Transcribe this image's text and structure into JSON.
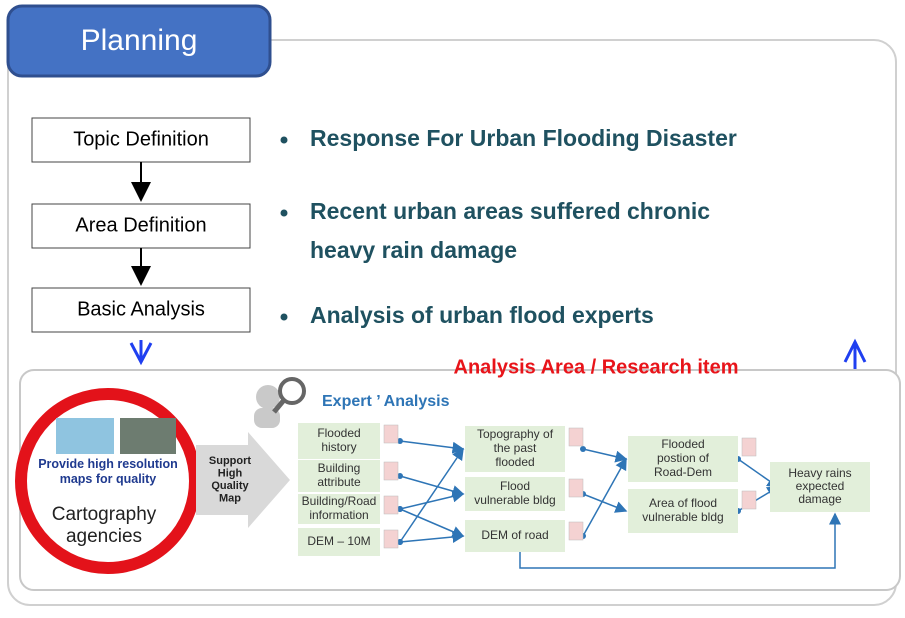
{
  "header": {
    "title": "Planning"
  },
  "steps": [
    "Topic Definition",
    "Area Definition",
    "Basic Analysis"
  ],
  "bullets": [
    [
      "Response For Urban Flooding Disaster"
    ],
    [
      "Recent urban areas suffered chronic",
      "heavy rain damage"
    ],
    [
      "Analysis of urban flood experts"
    ]
  ],
  "analysis": {
    "title": "Analysis Area / Research item",
    "source": {
      "caption": [
        "Provide high resolution",
        "maps for quality"
      ],
      "label": [
        "Cartography",
        "agencies"
      ]
    },
    "support": [
      "Support",
      "High",
      "Quality",
      "Map"
    ],
    "expert_title": "Expert ’ Analysis",
    "inputs": [
      [
        "Flooded",
        "history"
      ],
      [
        "Building",
        "attribute"
      ],
      [
        "Building/Road",
        "information"
      ],
      [
        "DEM – 10M"
      ]
    ],
    "intermediate": [
      [
        "Topography of",
        "the past",
        "flooded"
      ],
      [
        "Flood",
        "vulnerable bldg"
      ],
      [
        "DEM of road"
      ]
    ],
    "derived": [
      [
        "Flooded",
        "postion of",
        "Road-Dem"
      ],
      [
        "Area of flood",
        "vulnerable bldg"
      ]
    ],
    "result": [
      "Heavy rains",
      "expected",
      "damage"
    ]
  }
}
